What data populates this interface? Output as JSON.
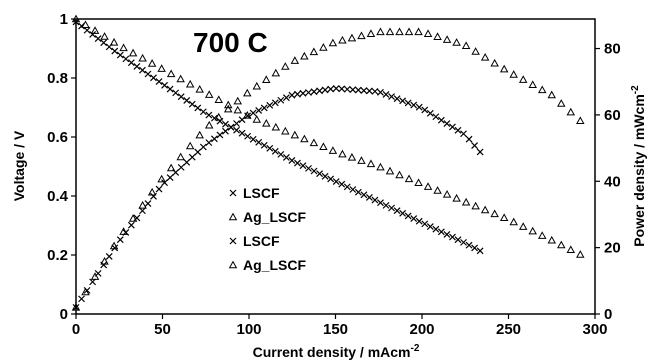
{
  "chart_data": {
    "type": "scatter",
    "title": "700 C",
    "xlabel": "Current density / mAcm",
    "xlabel_sup": "-2",
    "ylabel": "Voltage / V",
    "y2label": "Power density / mWcm",
    "y2label_sup": "-2",
    "xlim": [
      0,
      300
    ],
    "ylim": [
      0,
      1
    ],
    "y2lim": [
      0,
      88.9
    ],
    "x_ticks": [
      "0",
      "50",
      "100",
      "150",
      "200",
      "250",
      "300"
    ],
    "y_ticks": [
      "0",
      "0.2",
      "0.4",
      "0.6",
      "0.8",
      "1"
    ],
    "y2_ticks": [
      "0",
      "20",
      "40",
      "60",
      "80"
    ],
    "grid": false,
    "legend_position": "center-left",
    "series": [
      {
        "name": "LSCF",
        "axis": "voltage",
        "marker": "x",
        "x": [
          0,
          25,
          50,
          75,
          100,
          125,
          150,
          175,
          200,
          225,
          235
        ],
        "y": [
          0.99,
          0.88,
          0.78,
          0.68,
          0.6,
          0.52,
          0.45,
          0.38,
          0.31,
          0.24,
          0.21
        ]
      },
      {
        "name": "Ag_LSCF",
        "axis": "voltage",
        "marker": "triangle",
        "x": [
          0,
          25,
          50,
          75,
          100,
          125,
          150,
          175,
          200,
          225,
          250,
          275,
          292
        ],
        "y": [
          1.0,
          0.91,
          0.83,
          0.75,
          0.67,
          0.61,
          0.55,
          0.5,
          0.44,
          0.38,
          0.32,
          0.25,
          0.2
        ]
      },
      {
        "name": "LSCF",
        "axis": "power",
        "marker": "x",
        "x": [
          0,
          25,
          50,
          75,
          100,
          125,
          150,
          175,
          200,
          225,
          235
        ],
        "y": [
          2,
          22,
          39,
          51,
          60,
          66,
          68,
          67,
          62,
          54,
          48
        ]
      },
      {
        "name": "Ag_LSCF",
        "axis": "power",
        "marker": "triangle",
        "x": [
          0,
          25,
          50,
          75,
          100,
          125,
          150,
          175,
          200,
          225,
          250,
          275,
          292
        ],
        "y": [
          2,
          23,
          41,
          56,
          67,
          76,
          82,
          85,
          85,
          81,
          73,
          66,
          58
        ]
      }
    ],
    "legend": [
      "LSCF",
      "Ag_LSCF",
      "LSCF",
      "Ag_LSCF"
    ]
  }
}
